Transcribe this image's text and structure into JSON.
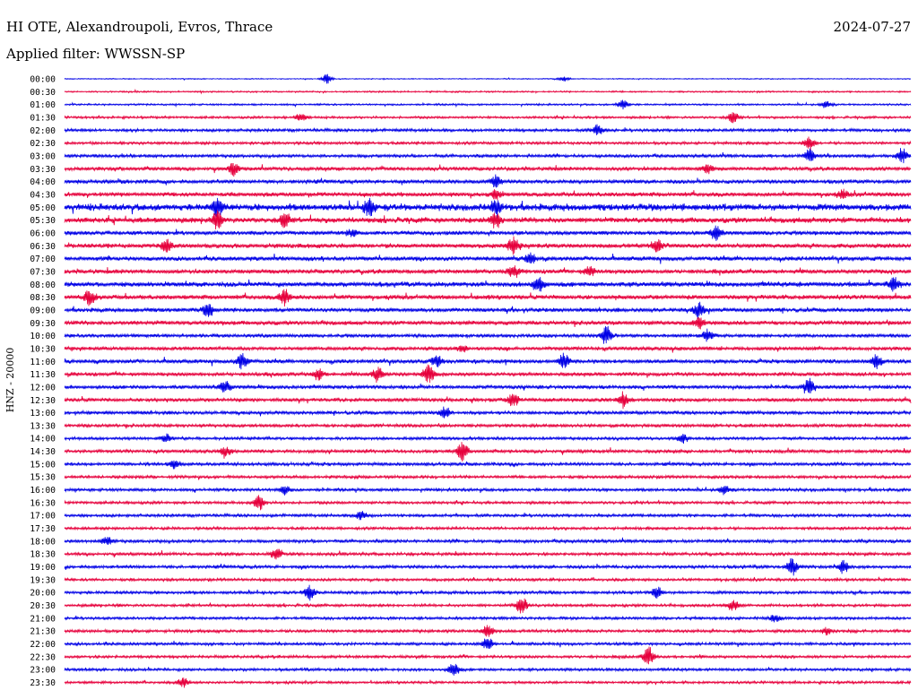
{
  "header": {
    "title": "HI OTE, Alexandroupoli, Evros, Thrace",
    "date": "2024-07-27",
    "filter": "Applied filter: WWSSN-SP"
  },
  "chart_data": {
    "type": "line",
    "ylabel": "HNZ - 20000",
    "row_labels": [
      "00:00",
      "00:30",
      "01:00",
      "01:30",
      "02:00",
      "02:30",
      "03:00",
      "03:30",
      "04:00",
      "04:30",
      "05:00",
      "05:30",
      "06:00",
      "06:30",
      "07:00",
      "07:30",
      "08:00",
      "08:30",
      "09:00",
      "09:30",
      "10:00",
      "10:30",
      "11:00",
      "11:30",
      "12:00",
      "12:30",
      "13:00",
      "13:30",
      "14:00",
      "14:30",
      "15:00",
      "15:30",
      "16:00",
      "16:30",
      "17:00",
      "17:30",
      "18:00",
      "18:30",
      "19:00",
      "19:30",
      "20:00",
      "20:30",
      "21:00",
      "21:30",
      "22:00",
      "22:30",
      "23:00",
      "23:30"
    ],
    "colors": [
      "#0000e6",
      "#e6003c"
    ],
    "row_noise": [
      0.4,
      0.7,
      0.8,
      1.0,
      1.3,
      1.2,
      1.4,
      1.6,
      1.7,
      1.9,
      3.0,
      2.4,
      1.8,
      2.0,
      1.9,
      1.9,
      2.2,
      2.0,
      1.8,
      1.9,
      1.5,
      1.6,
      1.7,
      1.6,
      1.6,
      1.6,
      1.5,
      1.4,
      1.3,
      1.4,
      1.4,
      1.3,
      1.3,
      1.2,
      1.3,
      1.2,
      1.4,
      1.3,
      1.4,
      1.2,
      1.3,
      1.2,
      1.2,
      1.3,
      1.2,
      1.2,
      1.2,
      1.1
    ],
    "events": [
      {
        "row": 0,
        "t": 0.31,
        "a": 5
      },
      {
        "row": 0,
        "t": 0.59,
        "a": 3
      },
      {
        "row": 2,
        "t": 0.66,
        "a": 6
      },
      {
        "row": 2,
        "t": 0.9,
        "a": 4
      },
      {
        "row": 3,
        "t": 0.28,
        "a": 5
      },
      {
        "row": 3,
        "t": 0.79,
        "a": 6
      },
      {
        "row": 4,
        "t": 0.63,
        "a": 6
      },
      {
        "row": 5,
        "t": 0.88,
        "a": 7
      },
      {
        "row": 6,
        "t": 0.88,
        "a": 7
      },
      {
        "row": 6,
        "t": 0.99,
        "a": 8
      },
      {
        "row": 7,
        "t": 0.2,
        "a": 7
      },
      {
        "row": 7,
        "t": 0.76,
        "a": 5
      },
      {
        "row": 8,
        "t": 0.51,
        "a": 6
      },
      {
        "row": 9,
        "t": 0.51,
        "a": 5
      },
      {
        "row": 9,
        "t": 0.92,
        "a": 4
      },
      {
        "row": 10,
        "t": 0.18,
        "a": 9
      },
      {
        "row": 10,
        "t": 0.36,
        "a": 9
      },
      {
        "row": 10,
        "t": 0.51,
        "a": 6
      },
      {
        "row": 11,
        "t": 0.18,
        "a": 8
      },
      {
        "row": 11,
        "t": 0.26,
        "a": 7
      },
      {
        "row": 11,
        "t": 0.51,
        "a": 8
      },
      {
        "row": 12,
        "t": 0.34,
        "a": 4
      },
      {
        "row": 12,
        "t": 0.77,
        "a": 7
      },
      {
        "row": 13,
        "t": 0.12,
        "a": 7
      },
      {
        "row": 13,
        "t": 0.53,
        "a": 9
      },
      {
        "row": 13,
        "t": 0.7,
        "a": 7
      },
      {
        "row": 14,
        "t": 0.55,
        "a": 6
      },
      {
        "row": 15,
        "t": 0.53,
        "a": 6
      },
      {
        "row": 15,
        "t": 0.62,
        "a": 5
      },
      {
        "row": 16,
        "t": 0.56,
        "a": 9
      },
      {
        "row": 16,
        "t": 0.98,
        "a": 7
      },
      {
        "row": 17,
        "t": 0.03,
        "a": 8
      },
      {
        "row": 17,
        "t": 0.26,
        "a": 8
      },
      {
        "row": 18,
        "t": 0.17,
        "a": 7
      },
      {
        "row": 18,
        "t": 0.75,
        "a": 8
      },
      {
        "row": 19,
        "t": 0.75,
        "a": 6
      },
      {
        "row": 20,
        "t": 0.64,
        "a": 10
      },
      {
        "row": 20,
        "t": 0.76,
        "a": 6
      },
      {
        "row": 21,
        "t": 0.47,
        "a": 4
      },
      {
        "row": 22,
        "t": 0.21,
        "a": 9
      },
      {
        "row": 22,
        "t": 0.44,
        "a": 6
      },
      {
        "row": 22,
        "t": 0.59,
        "a": 8
      },
      {
        "row": 22,
        "t": 0.96,
        "a": 7
      },
      {
        "row": 23,
        "t": 0.3,
        "a": 6
      },
      {
        "row": 23,
        "t": 0.37,
        "a": 8
      },
      {
        "row": 23,
        "t": 0.43,
        "a": 10
      },
      {
        "row": 24,
        "t": 0.19,
        "a": 6
      },
      {
        "row": 24,
        "t": 0.88,
        "a": 8
      },
      {
        "row": 25,
        "t": 0.53,
        "a": 7
      },
      {
        "row": 25,
        "t": 0.66,
        "a": 8
      },
      {
        "row": 26,
        "t": 0.45,
        "a": 6
      },
      {
        "row": 28,
        "t": 0.12,
        "a": 4
      },
      {
        "row": 28,
        "t": 0.73,
        "a": 5
      },
      {
        "row": 29,
        "t": 0.47,
        "a": 11
      },
      {
        "row": 29,
        "t": 0.19,
        "a": 5
      },
      {
        "row": 30,
        "t": 0.13,
        "a": 5
      },
      {
        "row": 32,
        "t": 0.26,
        "a": 5
      },
      {
        "row": 32,
        "t": 0.78,
        "a": 5
      },
      {
        "row": 33,
        "t": 0.23,
        "a": 8
      },
      {
        "row": 34,
        "t": 0.35,
        "a": 5
      },
      {
        "row": 36,
        "t": 0.05,
        "a": 4
      },
      {
        "row": 37,
        "t": 0.25,
        "a": 7
      },
      {
        "row": 38,
        "t": 0.86,
        "a": 9
      },
      {
        "row": 38,
        "t": 0.92,
        "a": 7
      },
      {
        "row": 40,
        "t": 0.29,
        "a": 8
      },
      {
        "row": 40,
        "t": 0.7,
        "a": 6
      },
      {
        "row": 41,
        "t": 0.54,
        "a": 10
      },
      {
        "row": 41,
        "t": 0.79,
        "a": 6
      },
      {
        "row": 42,
        "t": 0.84,
        "a": 4
      },
      {
        "row": 43,
        "t": 0.5,
        "a": 7
      },
      {
        "row": 43,
        "t": 0.9,
        "a": 4
      },
      {
        "row": 44,
        "t": 0.5,
        "a": 7
      },
      {
        "row": 45,
        "t": 0.69,
        "a": 11
      },
      {
        "row": 46,
        "t": 0.46,
        "a": 8
      },
      {
        "row": 47,
        "t": 0.14,
        "a": 5
      }
    ]
  }
}
